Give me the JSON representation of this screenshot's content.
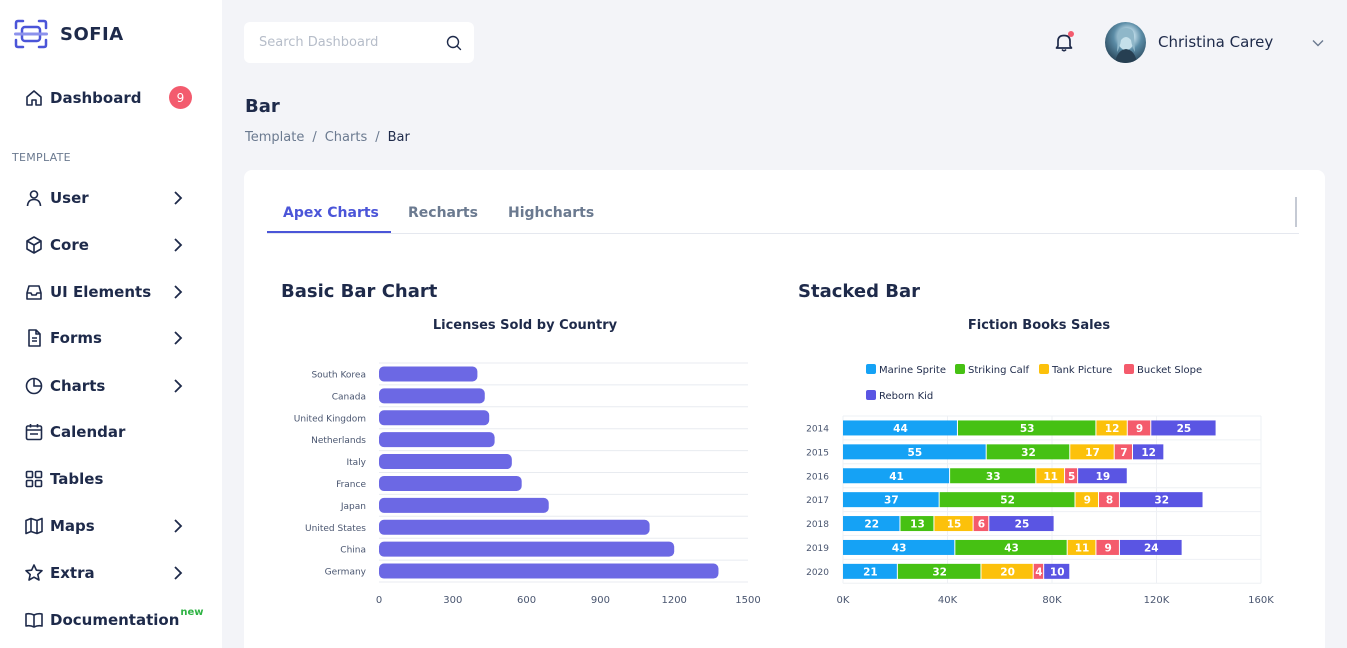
{
  "brand": {
    "name": "SOFIA"
  },
  "sidebar": {
    "dashboard": {
      "label": "Dashboard",
      "badge": "9"
    },
    "section_label": "TEMPLATE",
    "items": [
      {
        "label": "User",
        "icon": "user-icon"
      },
      {
        "label": "Core",
        "icon": "cube-icon"
      },
      {
        "label": "UI Elements",
        "icon": "inbox-icon"
      },
      {
        "label": "Forms",
        "icon": "document-icon"
      },
      {
        "label": "Charts",
        "icon": "pie-chart-icon"
      },
      {
        "label": "Calendar",
        "icon": "calendar-icon"
      },
      {
        "label": "Tables",
        "icon": "grid-icon"
      },
      {
        "label": "Maps",
        "icon": "map-icon"
      },
      {
        "label": "Extra",
        "icon": "star-icon"
      },
      {
        "label": "Documentation",
        "icon": "book-icon",
        "tag": "new"
      }
    ]
  },
  "topbar": {
    "search_placeholder": "Search Dashboard",
    "user_name": "Christina Carey"
  },
  "page": {
    "title": "Bar",
    "breadcrumb": [
      "Template",
      "Charts",
      "Bar"
    ]
  },
  "tabs": [
    "Apex Charts",
    "Recharts",
    "Highcharts"
  ],
  "sections": {
    "left_title": "Basic Bar Chart",
    "right_title": "Stacked Bar"
  },
  "colors": {
    "accent": "#4b55d8",
    "bar": "#6c68e4",
    "badge": "#f35b6e",
    "series": [
      "#15a2f5",
      "#46c113",
      "#fcc10b",
      "#f45b6c",
      "#5a55e3"
    ]
  },
  "chart_data": [
    {
      "type": "bar",
      "orientation": "horizontal",
      "title": "Licenses Sold by Country",
      "categories": [
        "South Korea",
        "Canada",
        "United Kingdom",
        "Netherlands",
        "Italy",
        "France",
        "Japan",
        "United States",
        "China",
        "Germany"
      ],
      "values": [
        400,
        430,
        448,
        470,
        540,
        580,
        690,
        1100,
        1200,
        1380
      ],
      "xlim": [
        0,
        1500
      ],
      "xticks": [
        0,
        300,
        600,
        900,
        1200,
        1500
      ],
      "grid": true
    },
    {
      "type": "bar",
      "orientation": "horizontal",
      "stacked": true,
      "title": "Fiction Books Sales",
      "categories": [
        "2014",
        "2015",
        "2016",
        "2017",
        "2018",
        "2019",
        "2020"
      ],
      "series": [
        {
          "name": "Marine Sprite",
          "values": [
            44,
            55,
            41,
            37,
            22,
            43,
            21
          ]
        },
        {
          "name": "Striking Calf",
          "values": [
            53,
            32,
            33,
            52,
            13,
            43,
            32
          ]
        },
        {
          "name": "Tank Picture",
          "values": [
            12,
            17,
            11,
            9,
            15,
            11,
            20
          ]
        },
        {
          "name": "Bucket Slope",
          "values": [
            9,
            7,
            5,
            8,
            6,
            9,
            4
          ]
        },
        {
          "name": "Reborn Kid",
          "values": [
            25,
            12,
            19,
            32,
            25,
            24,
            10
          ]
        }
      ],
      "xlim": [
        0,
        160
      ],
      "xtick_labels": [
        "0K",
        "40K",
        "80K",
        "120K",
        "160K"
      ],
      "legend": "top",
      "grid": true
    }
  ]
}
